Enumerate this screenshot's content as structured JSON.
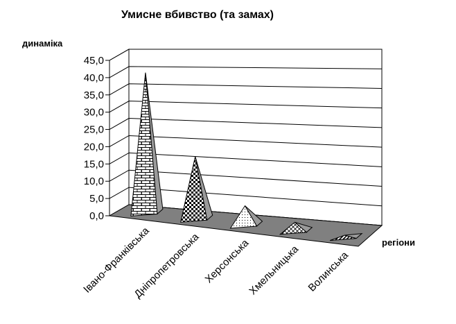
{
  "chart_data": {
    "type": "bar",
    "subtype": "3d-pyramid",
    "title": "Умисне вбивство (та замах)",
    "ylabel": "динаміка",
    "xlabel": "регіони",
    "categories": [
      "Івано-Франківська",
      "Дніпропетровська",
      "Херсонська",
      "Хмельницька",
      "Волинська"
    ],
    "values": [
      41.5,
      19.0,
      6.5,
      3.5,
      1.5
    ],
    "yticks": [
      "0,0",
      "5,0",
      "10,0",
      "15,0",
      "20,0",
      "25,0",
      "30,0",
      "35,0",
      "40,0",
      "45,0"
    ],
    "ylim": [
      0,
      45
    ],
    "grid": true,
    "legend": "none",
    "colors": {
      "floor": "#808080",
      "grid": "#000000",
      "background": "#ffffff",
      "outline": "#000000"
    },
    "fills": [
      "brick",
      "checker",
      "dots",
      "diamond",
      "diagonal"
    ]
  }
}
